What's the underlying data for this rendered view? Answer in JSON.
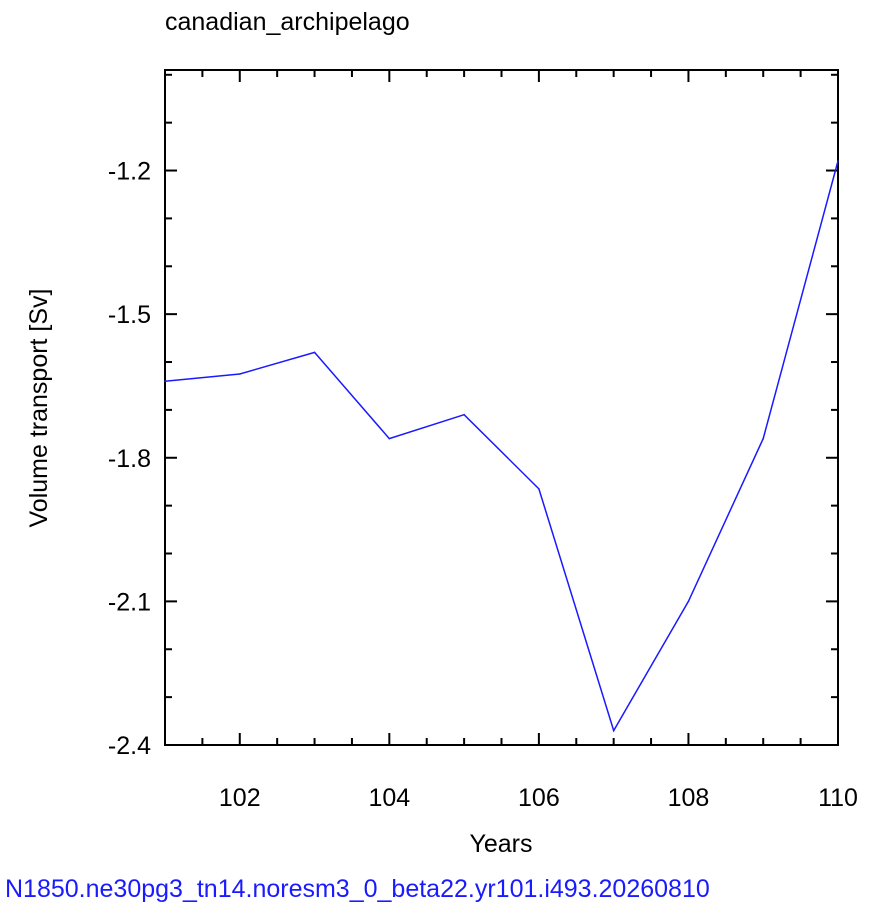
{
  "chart_data": {
    "type": "line",
    "title": "canadian_archipelago",
    "xlabel": "Years",
    "ylabel": "Volume transport [Sv]",
    "xlim": [
      101,
      110
    ],
    "ylim": [
      -2.4,
      -0.99
    ],
    "x_ticks": [
      102,
      104,
      106,
      108,
      110
    ],
    "x_tick_labels": [
      "102",
      "104",
      "106",
      "108",
      "110"
    ],
    "y_ticks": [
      -2.4,
      -2.1,
      -1.8,
      -1.5,
      -1.2
    ],
    "y_tick_labels": [
      "-2.4",
      "-2.1",
      "-1.8",
      "-1.5",
      "-1.2"
    ],
    "grid": false,
    "series": [
      {
        "color": "#1a1aff",
        "x": [
          101,
          102,
          103,
          104,
          105,
          106,
          107,
          108,
          109,
          110
        ],
        "y": [
          -1.64,
          -1.625,
          -1.58,
          -1.76,
          -1.71,
          -1.865,
          -2.37,
          -2.1,
          -1.76,
          -1.18
        ]
      }
    ]
  },
  "footer": "N1850.ne30pg3_tn14.noresm3_0_beta22.yr101.i493.20260810"
}
